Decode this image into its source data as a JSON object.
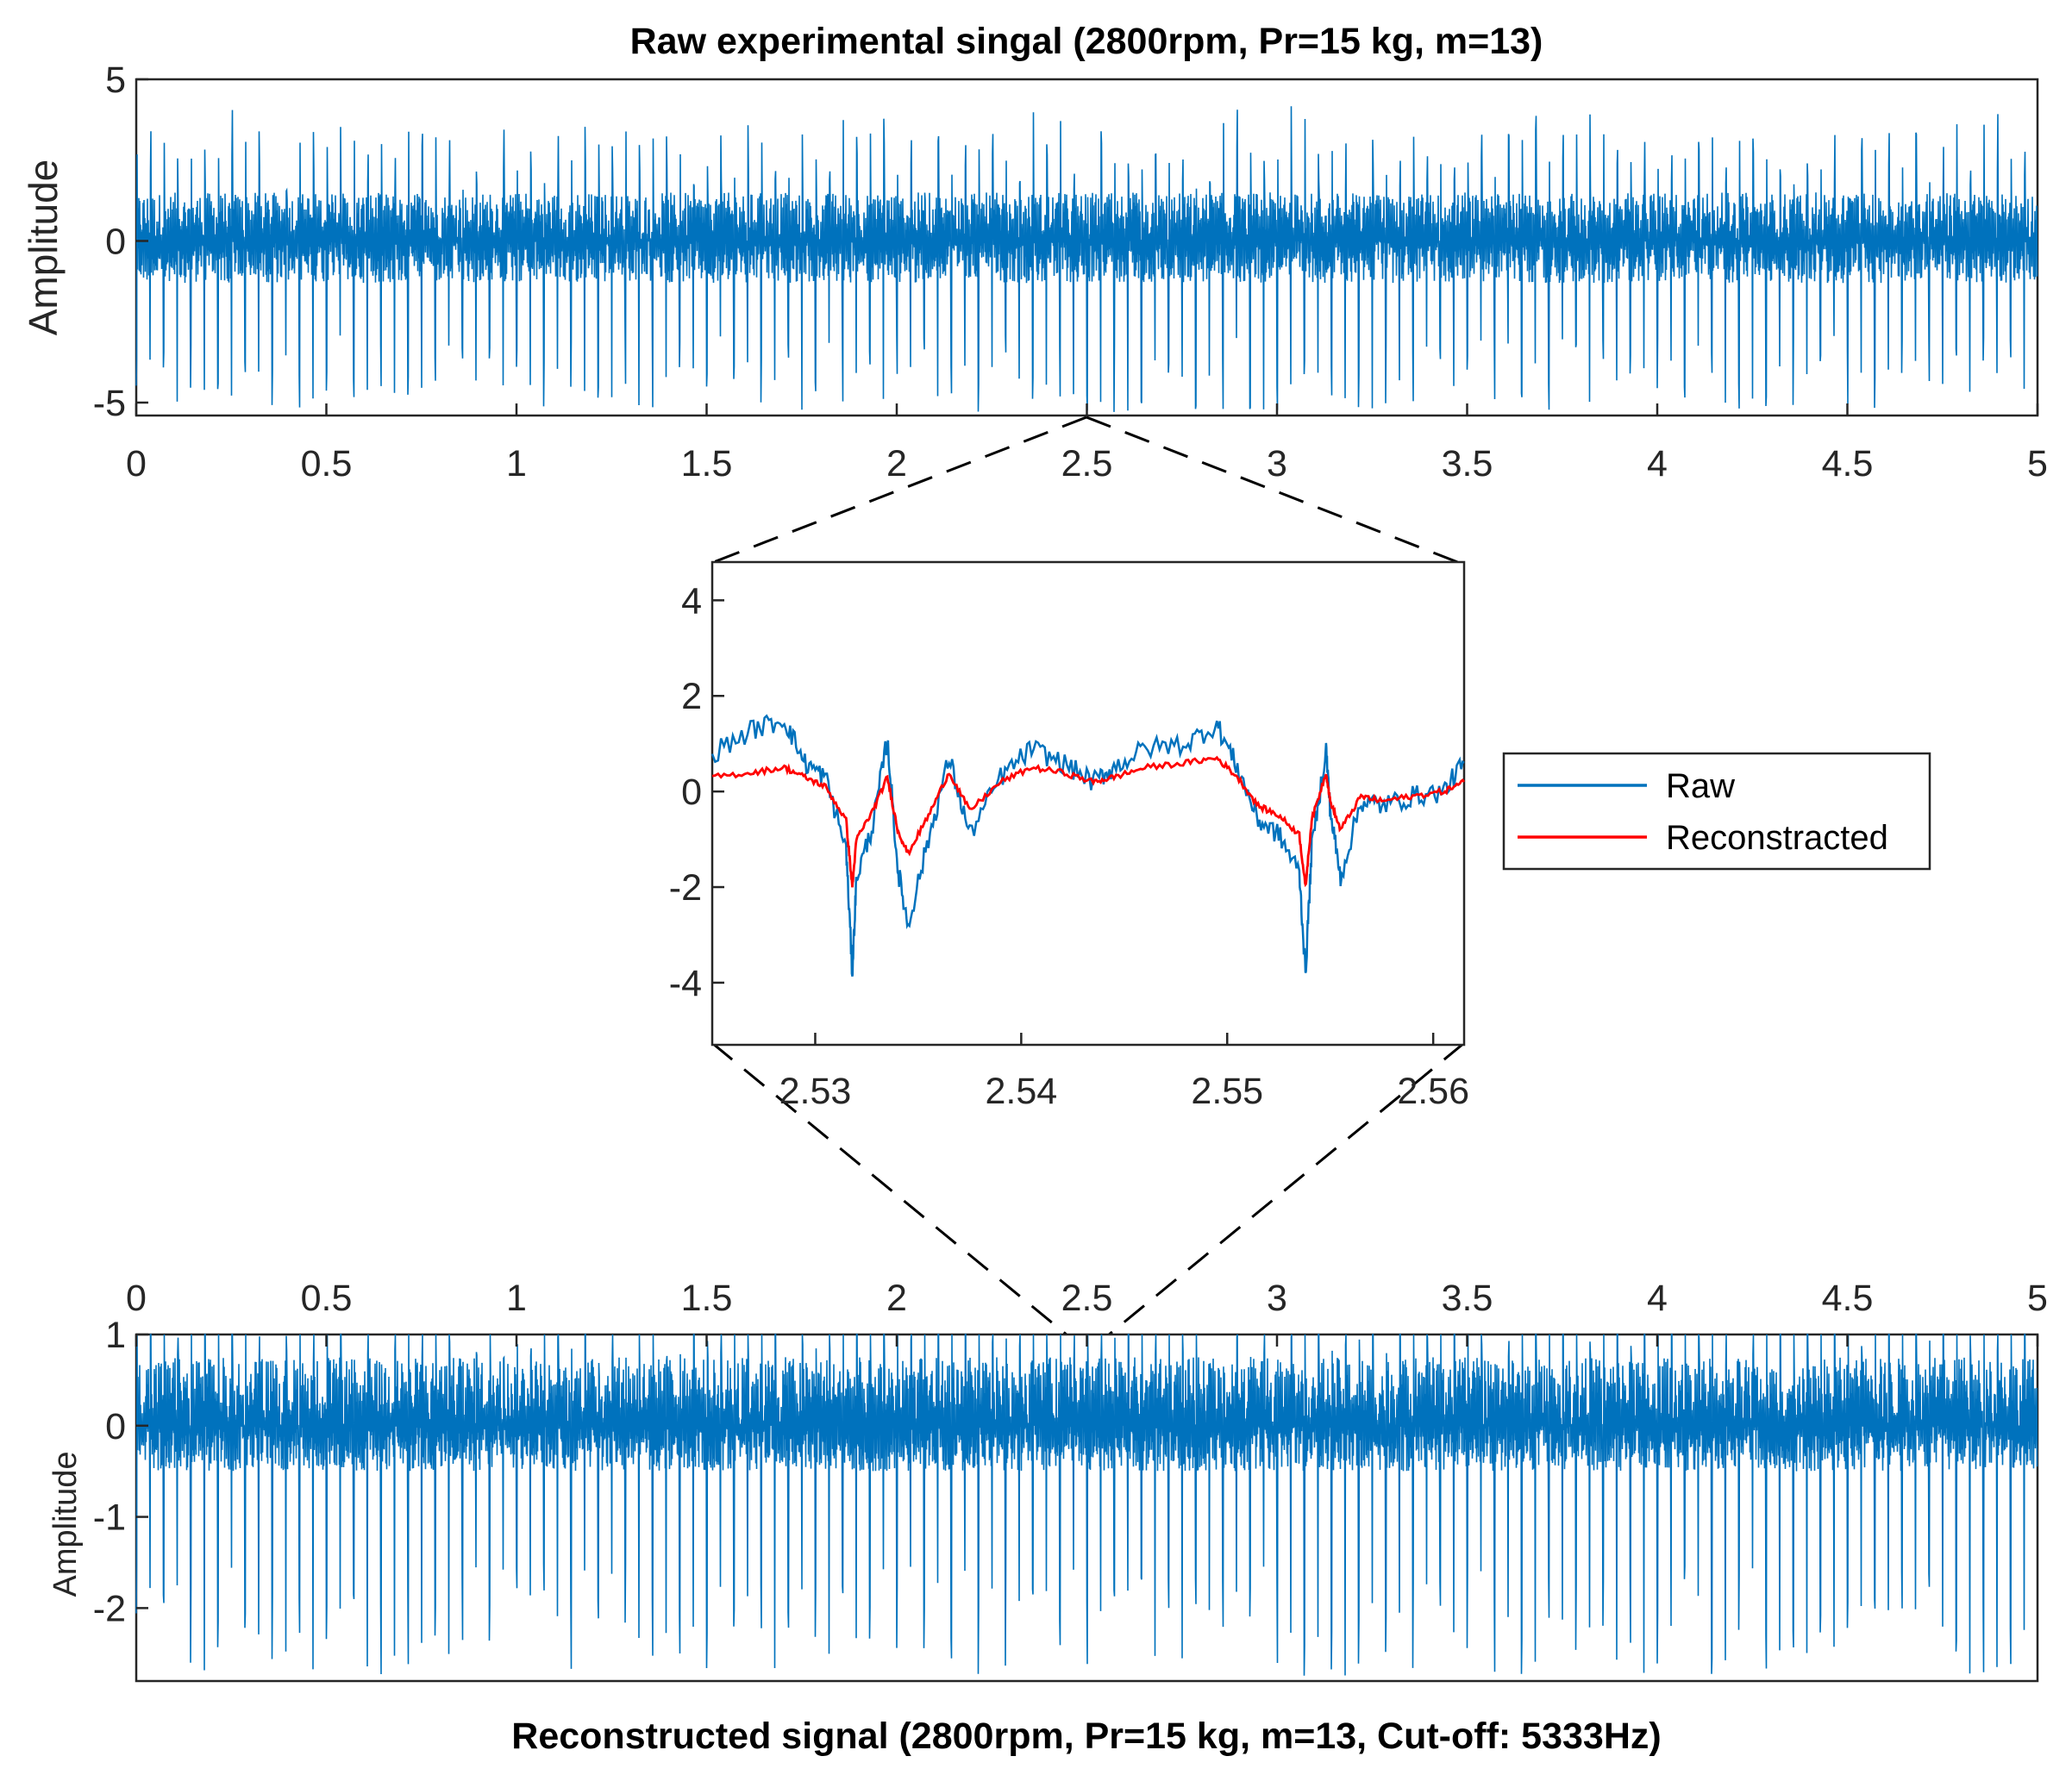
{
  "chart_data": [
    {
      "id": "top",
      "type": "line",
      "title": "Raw experimental singal (2800rpm, Pr=15 kg, m=13)",
      "xlabel": "",
      "ylabel": "Amplitude",
      "xlim": [
        0,
        5
      ],
      "ylim": [
        -5.4,
        5
      ],
      "x_ticks": [
        "0",
        "0.5",
        "1",
        "1.5",
        "2",
        "2.5",
        "3",
        "3.5",
        "4",
        "4.5",
        "5"
      ],
      "y_ticks": [
        "5",
        "0",
        "-5"
      ],
      "series": [
        {
          "name": "Raw",
          "color": "#0072BD",
          "impulse_count": 140,
          "noise_upper": 1.5,
          "noise_lower": -1.3,
          "impulse_min": -5.3,
          "impulse_max": 4.2
        }
      ]
    },
    {
      "id": "zoom",
      "type": "line",
      "title": "",
      "xlim": [
        2.525,
        2.5615
      ],
      "ylim": [
        -5.3,
        4.8
      ],
      "x_ticks": [
        "2.53",
        "2.54",
        "2.55",
        "2.56"
      ],
      "y_ticks": [
        "4",
        "2",
        "0",
        "-2",
        "-4"
      ],
      "legend": {
        "placement": "right",
        "entries": [
          "Raw",
          "Reconstracted"
        ]
      },
      "series": [
        {
          "name": "Raw",
          "color": "#0072BD",
          "x": [
            2.525,
            2.527,
            2.5285,
            2.5295,
            2.5305,
            2.5315,
            2.5318,
            2.532,
            2.5328,
            2.5335,
            2.534,
            2.5345,
            2.5355,
            2.5365,
            2.5375,
            2.539,
            2.5405,
            2.542,
            2.5435,
            2.5445,
            2.546,
            2.548,
            2.5495,
            2.5505,
            2.5515,
            2.5525,
            2.5535,
            2.5538,
            2.5541,
            2.5548,
            2.555,
            2.5555,
            2.5565,
            2.5575,
            2.559,
            2.5605,
            2.5615
          ],
          "y": [
            0.8,
            1.3,
            1.5,
            0.6,
            0.3,
            -1.2,
            -3.8,
            -1.8,
            -0.7,
            1.1,
            -1.6,
            -2.8,
            -1.0,
            0.7,
            -0.9,
            0.3,
            0.9,
            0.6,
            0.2,
            0.5,
            0.9,
            1.0,
            1.4,
            0.5,
            -0.6,
            -0.9,
            -1.7,
            -3.8,
            -1.2,
            0.9,
            -0.4,
            -1.8,
            -0.2,
            -0.3,
            -0.1,
            0.0,
            0.6
          ]
        },
        {
          "name": "Reconstracted",
          "color": "#FF0000",
          "x": [
            2.525,
            2.527,
            2.5285,
            2.5295,
            2.5305,
            2.5315,
            2.5318,
            2.532,
            2.5328,
            2.5335,
            2.534,
            2.5345,
            2.5355,
            2.5365,
            2.5375,
            2.539,
            2.5405,
            2.542,
            2.5435,
            2.5445,
            2.546,
            2.548,
            2.5495,
            2.5505,
            2.5515,
            2.5525,
            2.5535,
            2.5538,
            2.5541,
            2.5548,
            2.555,
            2.5555,
            2.5565,
            2.5575,
            2.559,
            2.5605,
            2.5615
          ],
          "y": [
            0.3,
            0.4,
            0.5,
            0.3,
            0.1,
            -0.6,
            -2.0,
            -1.0,
            -0.4,
            0.3,
            -0.8,
            -1.3,
            -0.5,
            0.4,
            -0.4,
            0.2,
            0.5,
            0.4,
            0.2,
            0.3,
            0.5,
            0.6,
            0.7,
            0.3,
            -0.3,
            -0.5,
            -0.9,
            -2.0,
            -0.6,
            0.4,
            -0.2,
            -0.8,
            -0.1,
            -0.2,
            -0.1,
            0.0,
            0.2
          ]
        }
      ]
    },
    {
      "id": "bottom",
      "type": "line",
      "title": "Reconstructed signal (2800rpm, Pr=15 kg, m=13, Cut-off: 5333Hz)",
      "xlabel": "",
      "ylabel": "Amplitude",
      "xlim": [
        0,
        5
      ],
      "ylim": [
        -2.8,
        1.0
      ],
      "x_ticks": [
        "0",
        "0.5",
        "1",
        "1.5",
        "2",
        "2.5",
        "3",
        "3.5",
        "4",
        "4.5",
        "5"
      ],
      "y_ticks": [
        "1",
        "0",
        "-1",
        "-2"
      ],
      "series": [
        {
          "name": "Reconstracted",
          "color": "#0072BD",
          "impulse_count": 140,
          "noise_upper": 0.75,
          "noise_lower": -0.5,
          "impulse_min": -2.75,
          "impulse_max": 1.0
        }
      ]
    }
  ]
}
